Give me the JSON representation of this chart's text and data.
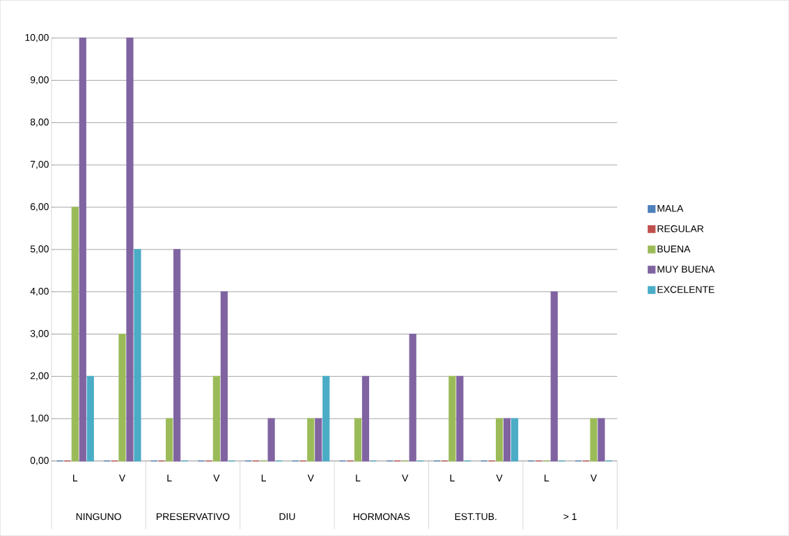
{
  "chart_data": {
    "type": "bar",
    "categories": [
      "L",
      "V",
      "L",
      "V",
      "L",
      "V",
      "L",
      "V",
      "L",
      "V",
      "L",
      "V"
    ],
    "series": [
      {
        "name": "MALA",
        "color": "#4f81bd",
        "values": [
          0,
          0,
          0,
          0,
          0,
          0,
          0,
          0,
          0,
          0,
          0,
          0
        ]
      },
      {
        "name": "REGULAR",
        "color": "#c0504d",
        "values": [
          0,
          0,
          0,
          0,
          0,
          0,
          0,
          0,
          0,
          0,
          0,
          0
        ]
      },
      {
        "name": "BUENA",
        "color": "#9bbb59",
        "values": [
          6,
          3,
          1,
          2,
          0,
          1,
          1,
          0,
          2,
          1,
          0,
          1
        ]
      },
      {
        "name": "MUY BUENA",
        "color": "#8064a2",
        "values": [
          10,
          10,
          5,
          4,
          1,
          1,
          2,
          3,
          2,
          1,
          4,
          1
        ]
      },
      {
        "name": "EXCELENTE",
        "color": "#4bacc6",
        "values": [
          2,
          5,
          0,
          0,
          0,
          2,
          0,
          0,
          0,
          1,
          0,
          0
        ]
      }
    ],
    "annotations": [
      "NINGUNO",
      "PRESERVATIVO",
      "DIU",
      "HORMONAS",
      "EST.TUB.",
      "> 1"
    ],
    "ylim": [
      0,
      10
    ],
    "yticks": [
      {
        "value": 0,
        "label": "0,00"
      },
      {
        "value": 1,
        "label": "1,00"
      },
      {
        "value": 2,
        "label": "2,00"
      },
      {
        "value": 3,
        "label": "3,00"
      },
      {
        "value": 4,
        "label": "4,00"
      },
      {
        "value": 5,
        "label": "5,00"
      },
      {
        "value": 6,
        "label": "6,00"
      },
      {
        "value": 7,
        "label": "7,00"
      },
      {
        "value": 8,
        "label": "8,00"
      },
      {
        "value": 9,
        "label": "9,00"
      },
      {
        "value": 10,
        "label": "10,00"
      }
    ],
    "grid": "y",
    "legend": "right"
  }
}
